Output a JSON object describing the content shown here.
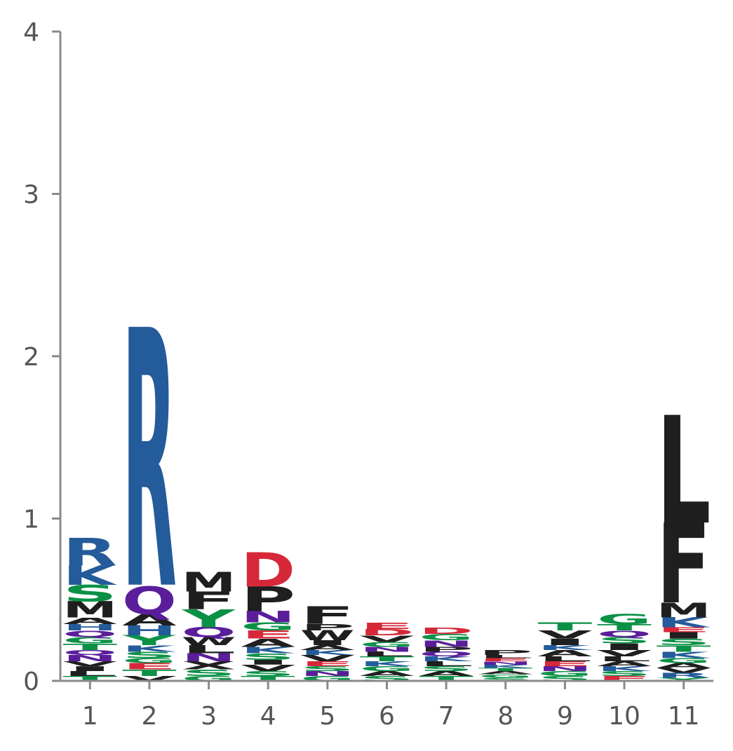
{
  "chart_data": {
    "type": "sequence-logo",
    "title": "",
    "xlabel": "",
    "ylabel": "",
    "ylim": [
      0,
      4
    ],
    "y_ticks": [
      "0",
      "1",
      "2",
      "3",
      "4"
    ],
    "positions": [
      "1",
      "2",
      "3",
      "4",
      "5",
      "6",
      "7",
      "8",
      "9",
      "10",
      "11"
    ],
    "colors": {
      "acidic": "#d62839",
      "basic": "#245b9a",
      "polar": "#0b9146",
      "neutral": "#5a1e9b",
      "hydrophobic": "#1f1f1f"
    },
    "stacks": [
      {
        "position": "1",
        "letters": [
          {
            "letter": "T",
            "height": 0.03,
            "group": "polar"
          },
          {
            "letter": "L",
            "height": 0.03,
            "group": "hydrophobic"
          },
          {
            "letter": "I",
            "height": 0.03,
            "group": "hydrophobic"
          },
          {
            "letter": "V",
            "height": 0.03,
            "group": "hydrophobic"
          },
          {
            "letter": "N",
            "height": 0.04,
            "group": "neutral"
          },
          {
            "letter": "Q",
            "height": 0.03,
            "group": "neutral"
          },
          {
            "letter": "T",
            "height": 0.04,
            "group": "polar"
          },
          {
            "letter": "G",
            "height": 0.04,
            "group": "polar"
          },
          {
            "letter": "Q",
            "height": 0.04,
            "group": "neutral"
          },
          {
            "letter": "H",
            "height": 0.04,
            "group": "basic"
          },
          {
            "letter": "A",
            "height": 0.04,
            "group": "hydrophobic"
          },
          {
            "letter": "M",
            "height": 0.1,
            "group": "hydrophobic"
          },
          {
            "letter": "S",
            "height": 0.1,
            "group": "polar"
          },
          {
            "letter": "K",
            "height": 0.12,
            "group": "basic"
          },
          {
            "letter": "R",
            "height": 0.17,
            "group": "basic"
          }
        ]
      },
      {
        "position": "2",
        "letters": [
          {
            "letter": "V",
            "height": 0.03,
            "group": "hydrophobic"
          },
          {
            "letter": "T",
            "height": 0.04,
            "group": "polar"
          },
          {
            "letter": "E",
            "height": 0.04,
            "group": "acidic"
          },
          {
            "letter": "G",
            "height": 0.03,
            "group": "polar"
          },
          {
            "letter": "S",
            "height": 0.04,
            "group": "polar"
          },
          {
            "letter": "K",
            "height": 0.04,
            "group": "basic"
          },
          {
            "letter": "Y",
            "height": 0.06,
            "group": "polar"
          },
          {
            "letter": "H",
            "height": 0.06,
            "group": "basic"
          },
          {
            "letter": "A",
            "height": 0.07,
            "group": "hydrophobic"
          },
          {
            "letter": "Q",
            "height": 0.17,
            "group": "neutral"
          },
          {
            "letter": "R",
            "height": 1.58,
            "group": "basic"
          }
        ]
      },
      {
        "position": "3",
        "letters": [
          {
            "letter": "G",
            "height": 0.03,
            "group": "polar"
          },
          {
            "letter": "S",
            "height": 0.04,
            "group": "polar"
          },
          {
            "letter": "X",
            "height": 0.05,
            "group": "hydrophobic"
          },
          {
            "letter": "N",
            "height": 0.05,
            "group": "neutral"
          },
          {
            "letter": "L",
            "height": 0.05,
            "group": "hydrophobic"
          },
          {
            "letter": "W",
            "height": 0.05,
            "group": "hydrophobic"
          },
          {
            "letter": "Q",
            "height": 0.06,
            "group": "neutral"
          },
          {
            "letter": "Y",
            "height": 0.11,
            "group": "polar"
          },
          {
            "letter": "F",
            "height": 0.11,
            "group": "hydrophobic"
          },
          {
            "letter": "M",
            "height": 0.12,
            "group": "hydrophobic"
          }
        ]
      },
      {
        "position": "4",
        "letters": [
          {
            "letter": "T",
            "height": 0.03,
            "group": "polar"
          },
          {
            "letter": "S",
            "height": 0.03,
            "group": "polar"
          },
          {
            "letter": "V",
            "height": 0.04,
            "group": "hydrophobic"
          },
          {
            "letter": "I",
            "height": 0.03,
            "group": "hydrophobic"
          },
          {
            "letter": "S",
            "height": 0.04,
            "group": "polar"
          },
          {
            "letter": "K",
            "height": 0.04,
            "group": "basic"
          },
          {
            "letter": "A",
            "height": 0.05,
            "group": "hydrophobic"
          },
          {
            "letter": "E",
            "height": 0.05,
            "group": "acidic"
          },
          {
            "letter": "G",
            "height": 0.05,
            "group": "polar"
          },
          {
            "letter": "N",
            "height": 0.07,
            "group": "neutral"
          },
          {
            "letter": "P",
            "height": 0.15,
            "group": "hydrophobic"
          },
          {
            "letter": "D",
            "height": 0.21,
            "group": "acidic"
          }
        ]
      },
      {
        "position": "5",
        "letters": [
          {
            "letter": "G",
            "height": 0.03,
            "group": "polar"
          },
          {
            "letter": "N",
            "height": 0.03,
            "group": "neutral"
          },
          {
            "letter": "S",
            "height": 0.03,
            "group": "polar"
          },
          {
            "letter": "E",
            "height": 0.03,
            "group": "acidic"
          },
          {
            "letter": "V",
            "height": 0.04,
            "group": "hydrophobic"
          },
          {
            "letter": "K",
            "height": 0.03,
            "group": "basic"
          },
          {
            "letter": "A",
            "height": 0.03,
            "group": "hydrophobic"
          },
          {
            "letter": "I",
            "height": 0.03,
            "group": "hydrophobic"
          },
          {
            "letter": "W",
            "height": 0.06,
            "group": "hydrophobic"
          },
          {
            "letter": "P",
            "height": 0.04,
            "group": "hydrophobic"
          },
          {
            "letter": "F",
            "height": 0.11,
            "group": "hydrophobic"
          }
        ]
      },
      {
        "position": "6",
        "letters": [
          {
            "letter": "S",
            "height": 0.03,
            "group": "polar"
          },
          {
            "letter": "A",
            "height": 0.03,
            "group": "hydrophobic"
          },
          {
            "letter": "G",
            "height": 0.03,
            "group": "polar"
          },
          {
            "letter": "K",
            "height": 0.03,
            "group": "basic"
          },
          {
            "letter": "T",
            "height": 0.03,
            "group": "polar"
          },
          {
            "letter": "L",
            "height": 0.03,
            "group": "hydrophobic"
          },
          {
            "letter": "N",
            "height": 0.03,
            "group": "neutral"
          },
          {
            "letter": "G",
            "height": 0.03,
            "group": "polar"
          },
          {
            "letter": "V",
            "height": 0.04,
            "group": "hydrophobic"
          },
          {
            "letter": "D",
            "height": 0.04,
            "group": "acidic"
          },
          {
            "letter": "E",
            "height": 0.04,
            "group": "acidic"
          }
        ]
      },
      {
        "position": "7",
        "letters": [
          {
            "letter": "T",
            "height": 0.03,
            "group": "polar"
          },
          {
            "letter": "A",
            "height": 0.03,
            "group": "hydrophobic"
          },
          {
            "letter": "S",
            "height": 0.03,
            "group": "polar"
          },
          {
            "letter": "L",
            "height": 0.03,
            "group": "hydrophobic"
          },
          {
            "letter": "K",
            "height": 0.03,
            "group": "basic"
          },
          {
            "letter": "Q",
            "height": 0.03,
            "group": "neutral"
          },
          {
            "letter": "P",
            "height": 0.03,
            "group": "hydrophobic"
          },
          {
            "letter": "N",
            "height": 0.04,
            "group": "neutral"
          },
          {
            "letter": "G",
            "height": 0.04,
            "group": "polar"
          },
          {
            "letter": "D",
            "height": 0.04,
            "group": "acidic"
          }
        ]
      },
      {
        "position": "8",
        "letters": [
          {
            "letter": "S",
            "height": 0.02,
            "group": "polar"
          },
          {
            "letter": "G",
            "height": 0.02,
            "group": "polar"
          },
          {
            "letter": "A",
            "height": 0.02,
            "group": "hydrophobic"
          },
          {
            "letter": "T",
            "height": 0.02,
            "group": "polar"
          },
          {
            "letter": "K",
            "height": 0.02,
            "group": "basic"
          },
          {
            "letter": "N",
            "height": 0.02,
            "group": "neutral"
          },
          {
            "letter": "E",
            "height": 0.02,
            "group": "acidic"
          },
          {
            "letter": "L",
            "height": 0.02,
            "group": "hydrophobic"
          },
          {
            "letter": "P",
            "height": 0.03,
            "group": "hydrophobic"
          }
        ]
      },
      {
        "position": "9",
        "letters": [
          {
            "letter": "S",
            "height": 0.03,
            "group": "polar"
          },
          {
            "letter": "G",
            "height": 0.03,
            "group": "polar"
          },
          {
            "letter": "N",
            "height": 0.03,
            "group": "neutral"
          },
          {
            "letter": "E",
            "height": 0.03,
            "group": "acidic"
          },
          {
            "letter": "L",
            "height": 0.03,
            "group": "hydrophobic"
          },
          {
            "letter": "A",
            "height": 0.04,
            "group": "hydrophobic"
          },
          {
            "letter": "K",
            "height": 0.03,
            "group": "basic"
          },
          {
            "letter": "I",
            "height": 0.04,
            "group": "hydrophobic"
          },
          {
            "letter": "V",
            "height": 0.05,
            "group": "hydrophobic"
          },
          {
            "letter": "T",
            "height": 0.05,
            "group": "polar"
          }
        ]
      },
      {
        "position": "10",
        "letters": [
          {
            "letter": "E",
            "height": 0.03,
            "group": "acidic"
          },
          {
            "letter": "S",
            "height": 0.03,
            "group": "polar"
          },
          {
            "letter": "K",
            "height": 0.03,
            "group": "basic"
          },
          {
            "letter": "A",
            "height": 0.03,
            "group": "hydrophobic"
          },
          {
            "letter": "L",
            "height": 0.03,
            "group": "hydrophobic"
          },
          {
            "letter": "V",
            "height": 0.04,
            "group": "hydrophobic"
          },
          {
            "letter": "I",
            "height": 0.04,
            "group": "hydrophobic"
          },
          {
            "letter": "S",
            "height": 0.04,
            "group": "polar"
          },
          {
            "letter": "Q",
            "height": 0.04,
            "group": "neutral"
          },
          {
            "letter": "T",
            "height": 0.04,
            "group": "polar"
          },
          {
            "letter": "G",
            "height": 0.06,
            "group": "polar"
          }
        ]
      },
      {
        "position": "11",
        "letters": [
          {
            "letter": "Y",
            "height": 0.02,
            "group": "polar"
          },
          {
            "letter": "R",
            "height": 0.03,
            "group": "basic"
          },
          {
            "letter": "V",
            "height": 0.03,
            "group": "hydrophobic"
          },
          {
            "letter": "A",
            "height": 0.03,
            "group": "hydrophobic"
          },
          {
            "letter": "G",
            "height": 0.03,
            "group": "polar"
          },
          {
            "letter": "K",
            "height": 0.04,
            "group": "basic"
          },
          {
            "letter": "T",
            "height": 0.04,
            "group": "polar"
          },
          {
            "letter": "S",
            "height": 0.04,
            "group": "polar"
          },
          {
            "letter": "I",
            "height": 0.04,
            "group": "hydrophobic"
          },
          {
            "letter": "E",
            "height": 0.03,
            "group": "acidic"
          },
          {
            "letter": "K",
            "height": 0.06,
            "group": "basic"
          },
          {
            "letter": "M",
            "height": 0.09,
            "group": "hydrophobic"
          },
          {
            "letter": "F",
            "height": 0.49,
            "group": "hydrophobic"
          },
          {
            "letter": "L",
            "height": 0.66,
            "group": "hydrophobic"
          }
        ]
      }
    ]
  }
}
